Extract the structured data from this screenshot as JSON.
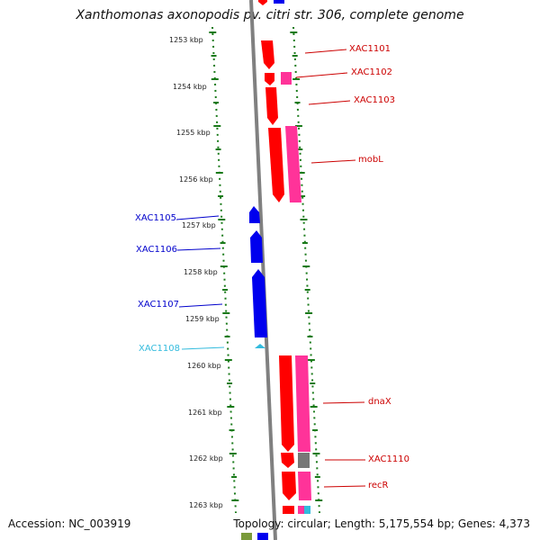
{
  "title": "Xanthomonas axonopodis pv. citri str. 306, complete genome",
  "accession": "Accession: NC_003919",
  "summary": "Topology: circular; Length: 5,175,554 bp; Genes: 4,373",
  "colors": {
    "gene_red": "#ff0000",
    "gene_pink": "#ff3399",
    "gene_blue": "#0000ee",
    "gene_cyan": "#33bbdd",
    "gene_gray": "#777777",
    "label_red": "#cc0000",
    "label_blue": "#0000cc",
    "label_cyan": "#33bbdd",
    "ruler_green": "#1a7a1a",
    "backbone": "#808080"
  },
  "ruler_labels": [
    "1253 kbp",
    "1254 kbp",
    "1255 kbp",
    "1256 kbp",
    "1257 kbp",
    "1258 kbp",
    "1259 kbp",
    "1260 kbp",
    "1261 kbp",
    "1262 kbp",
    "1263 kbp"
  ],
  "gene_labels": [
    {
      "text": "XAC1101",
      "color": "red"
    },
    {
      "text": "XAC1102",
      "color": "red"
    },
    {
      "text": "XAC1103",
      "color": "red"
    },
    {
      "text": "mobL",
      "color": "red"
    },
    {
      "text": "XAC1105",
      "color": "blue"
    },
    {
      "text": "XAC1106",
      "color": "blue"
    },
    {
      "text": "XAC1107",
      "color": "blue"
    },
    {
      "text": "XAC1108",
      "color": "cyan"
    },
    {
      "text": "dnaX",
      "color": "red"
    },
    {
      "text": "XAC1110",
      "color": "red"
    },
    {
      "text": "recR",
      "color": "red"
    }
  ]
}
